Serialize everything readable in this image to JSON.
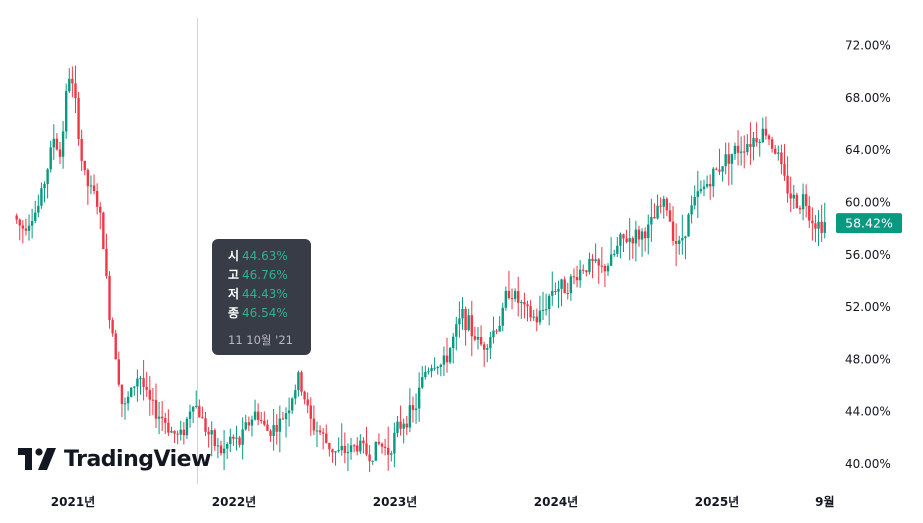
{
  "chart_data": {
    "type": "candlestick",
    "ylim": [
      38.5,
      74.5
    ],
    "y_ticks": [
      "72.00%",
      "68.00%",
      "64.00%",
      "60.00%",
      "56.00%",
      "52.00%",
      "48.00%",
      "44.00%",
      "40.00%"
    ],
    "y_tick_values": [
      72,
      68,
      64,
      60,
      56,
      52,
      48,
      44,
      40
    ],
    "x_ticks": [
      "2021년",
      "2022년",
      "2023년",
      "2024년",
      "2025년",
      "9월"
    ],
    "x_tick_positions": [
      0.0,
      1.0,
      2.0,
      3.0,
      4.0,
      4.67
    ],
    "xlim": [
      -0.35,
      4.72
    ],
    "last_price_label": "58.42%",
    "last_price": 58.42,
    "up_color": "#089981",
    "down_color": "#f23645",
    "anchors": [
      [
        -0.35,
        59.0
      ],
      [
        -0.3,
        58.0
      ],
      [
        -0.2,
        59.5
      ],
      [
        -0.15,
        62.0
      ],
      [
        -0.1,
        65.0
      ],
      [
        -0.06,
        63.5
      ],
      [
        -0.02,
        68.5
      ],
      [
        0.0,
        70.0
      ],
      [
        0.04,
        67.0
      ],
      [
        0.08,
        62.5
      ],
      [
        0.12,
        61.0
      ],
      [
        0.16,
        60.5
      ],
      [
        0.2,
        58.0
      ],
      [
        0.24,
        52.0
      ],
      [
        0.28,
        49.0
      ],
      [
        0.33,
        44.0
      ],
      [
        0.38,
        45.5
      ],
      [
        0.43,
        47.0
      ],
      [
        0.48,
        45.0
      ],
      [
        0.53,
        44.0
      ],
      [
        0.58,
        43.5
      ],
      [
        0.63,
        42.5
      ],
      [
        0.68,
        42.0
      ],
      [
        0.72,
        43.0
      ],
      [
        0.76,
        45.0
      ],
      [
        0.8,
        44.0
      ],
      [
        0.85,
        42.5
      ],
      [
        0.9,
        41.5
      ],
      [
        0.95,
        40.8
      ],
      [
        1.0,
        42.0
      ],
      [
        1.05,
        41.5
      ],
      [
        1.1,
        43.0
      ],
      [
        1.16,
        44.0
      ],
      [
        1.22,
        42.5
      ],
      [
        1.3,
        43.0
      ],
      [
        1.36,
        44.5
      ],
      [
        1.42,
        46.5
      ],
      [
        1.46,
        45.0
      ],
      [
        1.5,
        43.0
      ],
      [
        1.55,
        42.5
      ],
      [
        1.6,
        41.5
      ],
      [
        1.66,
        40.8
      ],
      [
        1.72,
        41.0
      ],
      [
        1.8,
        41.5
      ],
      [
        1.86,
        40.6
      ],
      [
        1.92,
        41.5
      ],
      [
        1.98,
        41.0
      ],
      [
        2.03,
        42.5
      ],
      [
        2.08,
        43.5
      ],
      [
        2.14,
        44.0
      ],
      [
        2.2,
        47.0
      ],
      [
        2.26,
        47.8
      ],
      [
        2.32,
        47.5
      ],
      [
        2.38,
        49.5
      ],
      [
        2.44,
        51.5
      ],
      [
        2.5,
        50.0
      ],
      [
        2.56,
        49.0
      ],
      [
        2.62,
        50.0
      ],
      [
        2.68,
        51.0
      ],
      [
        2.72,
        53.5
      ],
      [
        2.78,
        52.5
      ],
      [
        2.84,
        51.5
      ],
      [
        2.9,
        51.0
      ],
      [
        2.95,
        52.0
      ],
      [
        3.0,
        53.5
      ],
      [
        3.06,
        53.5
      ],
      [
        3.12,
        54.0
      ],
      [
        3.18,
        55.0
      ],
      [
        3.24,
        55.3
      ],
      [
        3.3,
        54.8
      ],
      [
        3.36,
        55.5
      ],
      [
        3.42,
        57.0
      ],
      [
        3.48,
        57.3
      ],
      [
        3.54,
        57.5
      ],
      [
        3.6,
        58.0
      ],
      [
        3.66,
        59.5
      ],
      [
        3.7,
        60.0
      ],
      [
        3.74,
        58.0
      ],
      [
        3.78,
        56.5
      ],
      [
        3.82,
        58.0
      ],
      [
        3.86,
        59.5
      ],
      [
        3.9,
        60.5
      ],
      [
        3.96,
        61.5
      ],
      [
        4.02,
        62.5
      ],
      [
        4.08,
        63.5
      ],
      [
        4.14,
        64.0
      ],
      [
        4.2,
        64.5
      ],
      [
        4.26,
        65.0
      ],
      [
        4.32,
        65.5
      ],
      [
        4.36,
        64.5
      ],
      [
        4.4,
        63.5
      ],
      [
        4.44,
        61.5
      ],
      [
        4.48,
        60.5
      ],
      [
        4.52,
        59.8
      ],
      [
        4.56,
        60.5
      ],
      [
        4.6,
        59.0
      ],
      [
        4.64,
        58.3
      ],
      [
        4.68,
        58.42
      ]
    ],
    "data_labels_tooltip": {
      "open_key": "시",
      "open": "44.63%",
      "high_key": "고",
      "high": "46.76%",
      "low_key": "저",
      "low": "44.43%",
      "close_key": "종",
      "close": "46.54%",
      "date": "11 10월 '21"
    }
  },
  "branding": {
    "logo_text": "TradingView"
  },
  "colors": {
    "axis_text": "#131722",
    "crosshair": "#d1d4dc",
    "tooltip_bg": "#2a2e39"
  }
}
